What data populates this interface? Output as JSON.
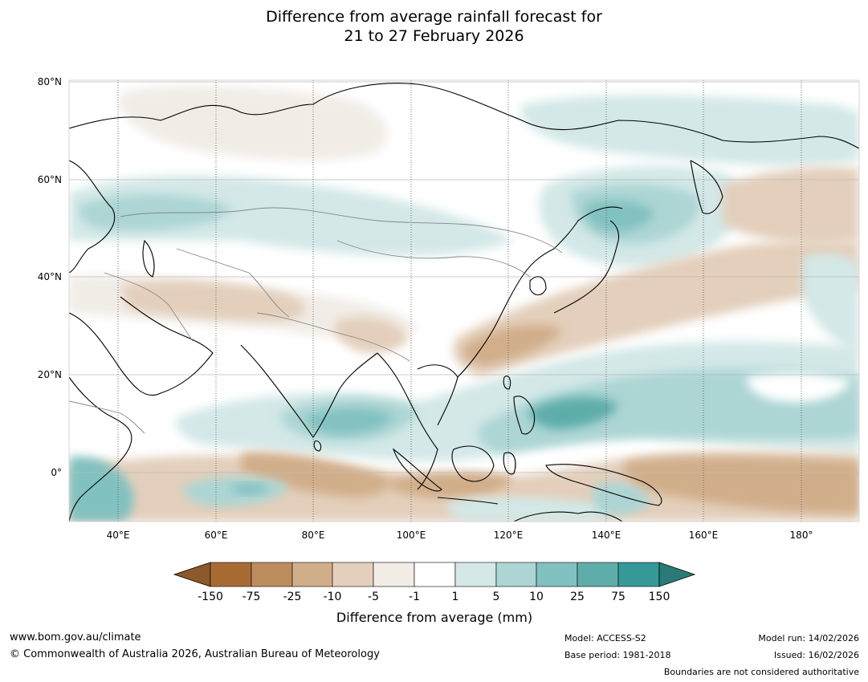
{
  "title": {
    "line1": "Difference from average rainfall forecast for",
    "line2": "21 to 27 February 2026"
  },
  "map": {
    "lat_labels": [
      "80°N",
      "60°N",
      "40°N",
      "20°N",
      "0°"
    ],
    "lon_labels": [
      "40°E",
      "60°E",
      "80°E",
      "100°E",
      "120°E",
      "140°E",
      "160°E",
      "180°"
    ]
  },
  "colorbar": {
    "tick_labels": [
      "-150",
      "-75",
      "-25",
      "-10",
      "-5",
      "-1",
      "1",
      "5",
      "10",
      "25",
      "75",
      "150"
    ],
    "colors": [
      "#a96b34",
      "#bd8d5e",
      "#d1ae8a",
      "#e3cfbb",
      "#f1ece6",
      "#ffffff",
      "#d3e8e7",
      "#acd5d4",
      "#81c1c0",
      "#5eadab",
      "#359997"
    ],
    "under_color": "#8c5a2a",
    "over_color": "#2a7b78",
    "label": "Difference from average (mm)"
  },
  "footer": {
    "website": "www.bom.gov.au/climate",
    "copyright": "© Commonwealth of Australia 2026, Australian Bureau of Meteorology",
    "model": "Model: ACCESS-S2",
    "base_period": "Base period: 1981-2018",
    "model_run": "Model run: 14/02/2026",
    "issued": "Issued: 16/02/2026",
    "boundaries_note": "Boundaries are not considered authoritative"
  }
}
